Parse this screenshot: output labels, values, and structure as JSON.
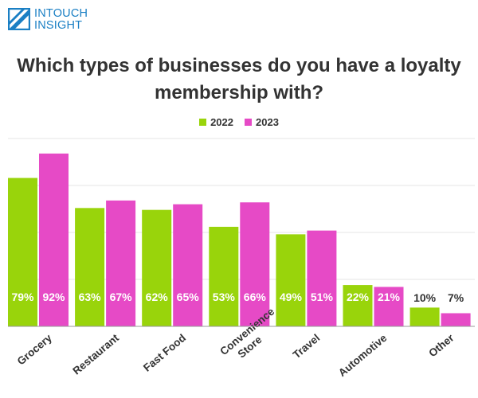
{
  "brand": {
    "line1": "INTOUCH",
    "line2": "INSIGHT",
    "color": "#1a7fc4"
  },
  "colors": {
    "series_2022": "#99d40b",
    "series_2023": "#e64ac6",
    "grid": "#e6e6e6",
    "axis": "#999999",
    "text": "#333333"
  },
  "chart_data": {
    "type": "bar",
    "title": "Which types of businesses do you have a loyalty membership with?",
    "categories": [
      "Grocery",
      "Restaurant",
      "Fast Food",
      "Convenience Store",
      "Travel",
      "Automotive",
      "Other"
    ],
    "category_lines": [
      [
        "Grocery"
      ],
      [
        "Restaurant"
      ],
      [
        "Fast Food"
      ],
      [
        "Convenience",
        "Store"
      ],
      [
        "Travel"
      ],
      [
        "Automotive"
      ],
      [
        "Other"
      ]
    ],
    "series": [
      {
        "name": "2022",
        "values": [
          79,
          63,
          62,
          53,
          49,
          22,
          10
        ],
        "labels": [
          "79%",
          "63%",
          "62%",
          "53%",
          "49%",
          "22%",
          "10%"
        ]
      },
      {
        "name": "2023",
        "values": [
          92,
          67,
          65,
          66,
          51,
          21,
          7
        ],
        "labels": [
          "92%",
          "67%",
          "65%",
          "66%",
          "51%",
          "21%",
          "7%"
        ]
      }
    ],
    "ylim": [
      0,
      100
    ],
    "grid": true,
    "legend_position": "top-center",
    "xlabel": "",
    "ylabel": ""
  }
}
